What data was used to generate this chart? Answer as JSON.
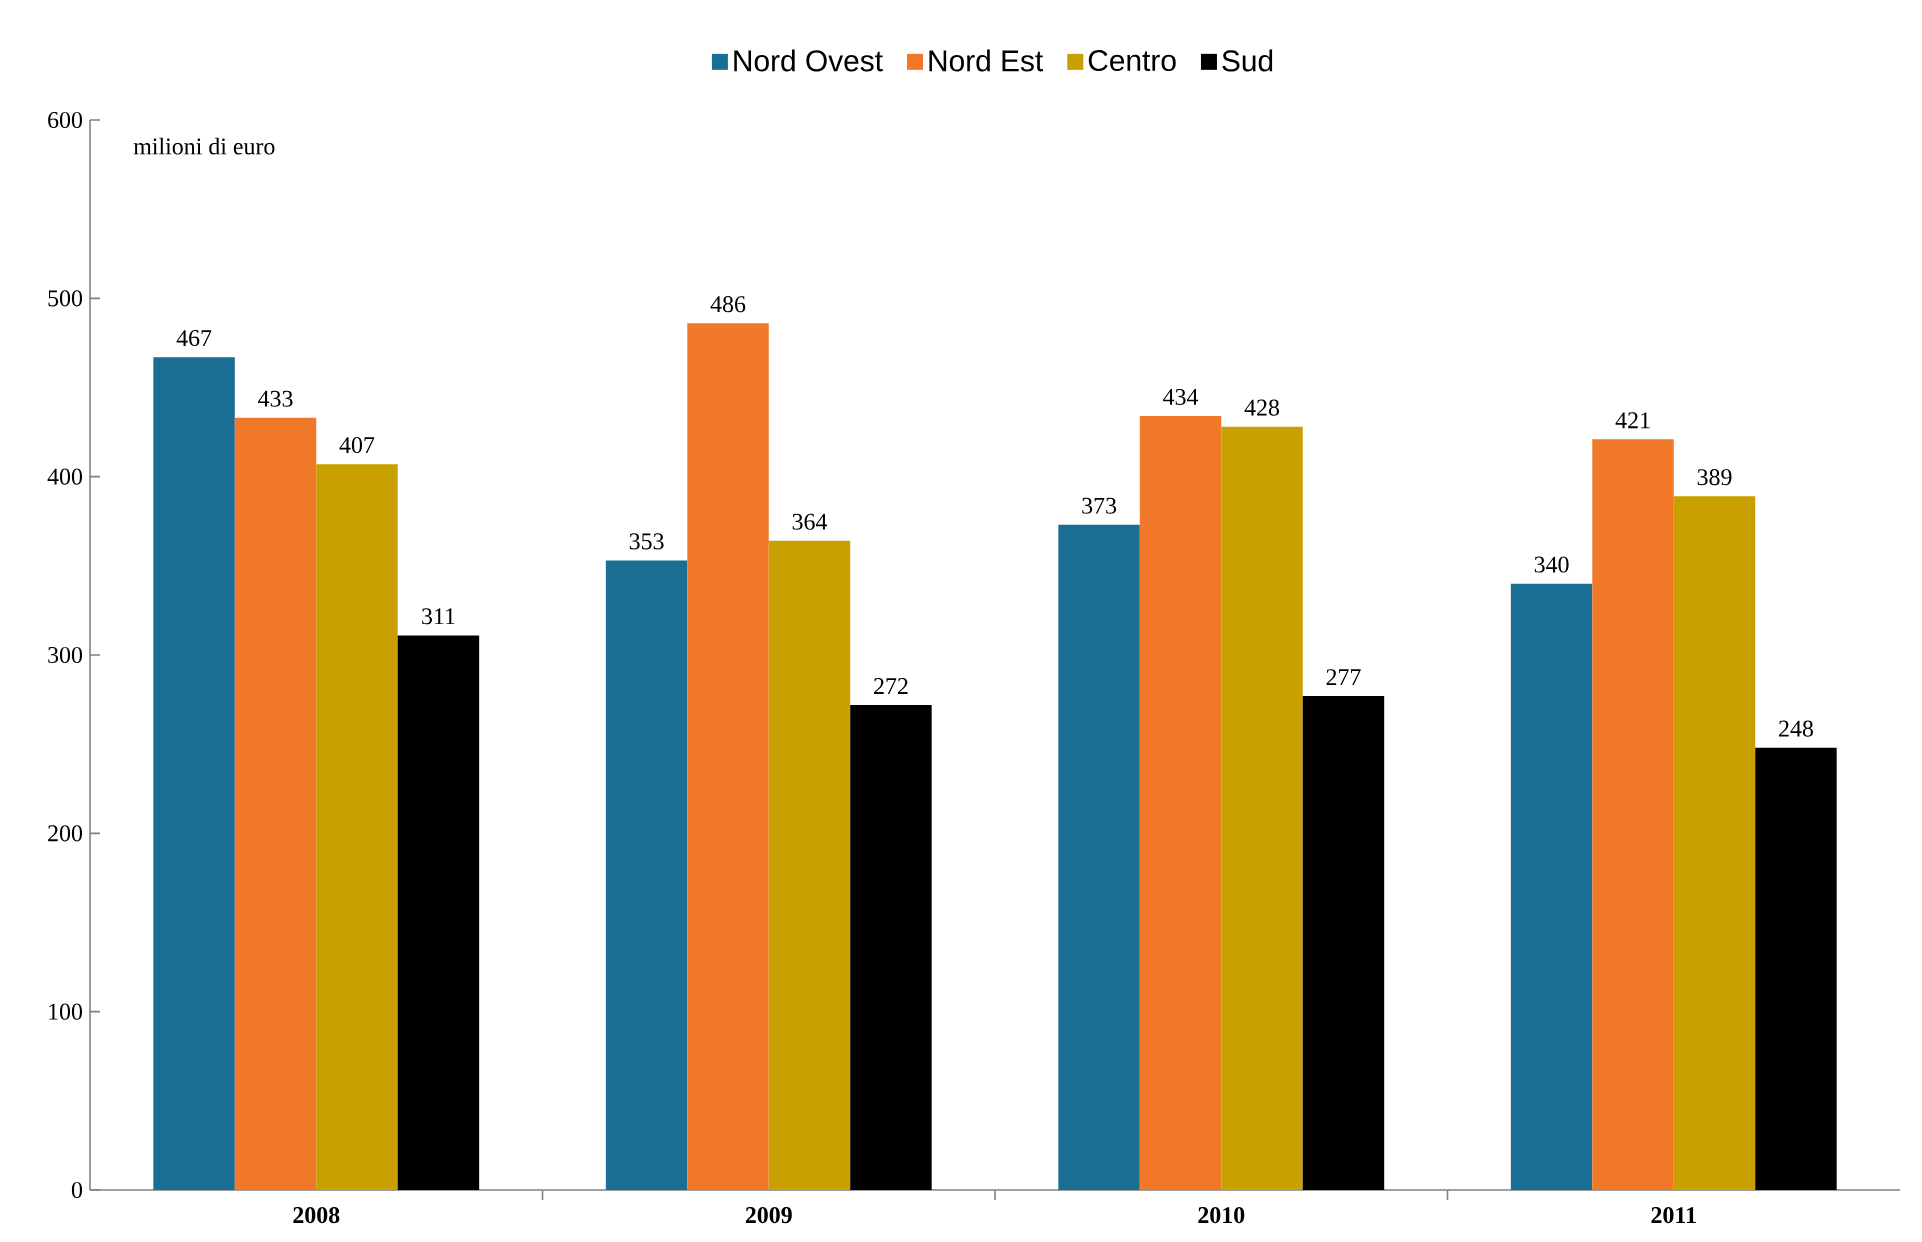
{
  "chart_data": {
    "type": "bar",
    "ylabel": "milioni di euro",
    "categories": [
      "2008",
      "2009",
      "2010",
      "2011"
    ],
    "series": [
      {
        "name": "Nord Ovest",
        "color": "#1a6e94",
        "values": [
          467,
          353,
          373,
          340
        ]
      },
      {
        "name": "Nord Est",
        "color": "#f07828",
        "values": [
          433,
          486,
          434,
          421
        ]
      },
      {
        "name": "Centro",
        "color": "#c8a000",
        "values": [
          407,
          364,
          428,
          389
        ]
      },
      {
        "name": "Sud",
        "color": "#000000",
        "values": [
          311,
          272,
          277,
          248
        ]
      }
    ],
    "ylim": [
      0,
      600
    ],
    "yticks": [
      0,
      100,
      200,
      300,
      400,
      500,
      600
    ],
    "data_labels": true,
    "legend": "top",
    "grid": false
  }
}
